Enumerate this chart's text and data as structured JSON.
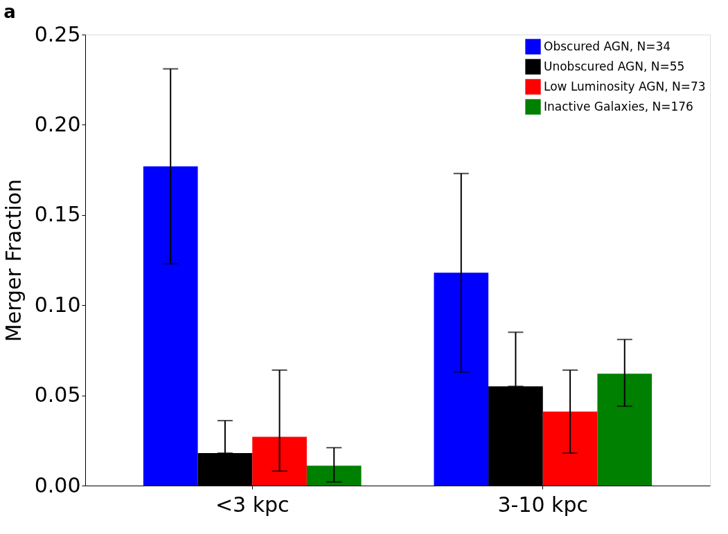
{
  "chart_data": {
    "type": "bar",
    "title": "a",
    "ylabel": "Merger Fraction",
    "categories": [
      "<3 kpc",
      "3-10 kpc"
    ],
    "series": [
      {
        "name": "Obscured AGN, N=34",
        "color": "#0000ff",
        "values": [
          0.177,
          0.118
        ],
        "errors": [
          [
            0.123,
            0.231
          ],
          [
            0.063,
            0.173
          ]
        ]
      },
      {
        "name": "Unobscured AGN, N=55",
        "color": "#000000",
        "values": [
          0.018,
          0.055
        ],
        "errors": [
          [
            0.018,
            0.036
          ],
          [
            0.055,
            0.085
          ]
        ]
      },
      {
        "name": "Low Luminosity AGN, N=73",
        "color": "#ff0000",
        "values": [
          0.027,
          0.041
        ],
        "errors": [
          [
            0.008,
            0.064
          ],
          [
            0.018,
            0.064
          ]
        ]
      },
      {
        "name": "Inactive Galaxies, N=176",
        "color": "#008000",
        "values": [
          0.011,
          0.062
        ],
        "errors": [
          [
            0.002,
            0.021
          ],
          [
            0.044,
            0.081
          ]
        ]
      }
    ],
    "ylim": [
      0,
      0.25
    ],
    "yticks": [
      {
        "value": 0,
        "label": "0.00"
      },
      0.05,
      {
        "value": 0.1,
        "label": "0.10"
      },
      0.15,
      {
        "value": 0.2,
        "label": "0.20"
      },
      0.25
    ],
    "grid": false,
    "legend": "top right"
  }
}
